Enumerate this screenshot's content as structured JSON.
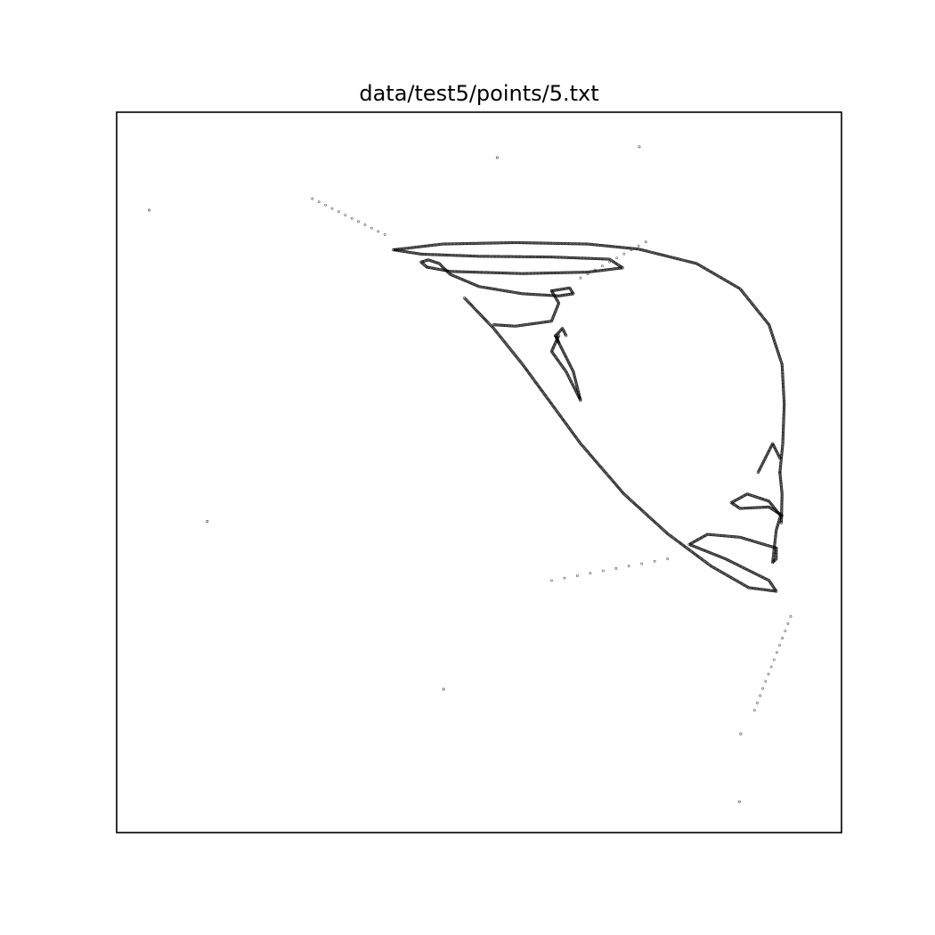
{
  "chart_data": {
    "type": "scatter",
    "title": "data/test5/points/5.txt",
    "xlabel": "",
    "ylabel": "",
    "xlim": [
      0,
      1
    ],
    "ylim": [
      0,
      1
    ],
    "axes_ticks": "none",
    "grid": false,
    "legend": "none",
    "colors": {
      "marker": "#000000",
      "frame": "#000000",
      "background": "#ffffff"
    },
    "isolated_points": [
      {
        "x": 0.045,
        "y": 0.864
      },
      {
        "x": 0.125,
        "y": 0.432
      },
      {
        "x": 0.525,
        "y": 0.937
      },
      {
        "x": 0.721,
        "y": 0.952
      },
      {
        "x": 0.451,
        "y": 0.199
      },
      {
        "x": 0.859,
        "y": 0.043
      },
      {
        "x": 0.861,
        "y": 0.137
      }
    ],
    "dotted_trails": [
      {
        "x0": 0.27,
        "y0": 0.88,
        "x1": 0.37,
        "y1": 0.83,
        "count": 12
      },
      {
        "x0": 0.73,
        "y0": 0.82,
        "x1": 0.64,
        "y1": 0.77,
        "count": 10
      },
      {
        "x0": 0.6,
        "y0": 0.35,
        "x1": 0.76,
        "y1": 0.38,
        "count": 10
      },
      {
        "x0": 0.93,
        "y0": 0.3,
        "x1": 0.88,
        "y1": 0.17,
        "count": 14
      }
    ],
    "curves": [
      {
        "name": "",
        "points": [
          [
            0.382,
            0.809
          ],
          [
            0.45,
            0.817
          ],
          [
            0.55,
            0.819
          ],
          [
            0.65,
            0.817
          ],
          [
            0.72,
            0.81
          ],
          [
            0.8,
            0.79
          ],
          [
            0.86,
            0.755
          ],
          [
            0.9,
            0.705
          ],
          [
            0.918,
            0.65
          ],
          [
            0.921,
            0.595
          ],
          [
            0.919,
            0.54
          ],
          [
            0.915,
            0.5
          ]
        ]
      },
      {
        "name": "",
        "points": [
          [
            0.382,
            0.809
          ],
          [
            0.42,
            0.803
          ],
          [
            0.5,
            0.8
          ],
          [
            0.6,
            0.799
          ],
          [
            0.68,
            0.796
          ],
          [
            0.698,
            0.784
          ],
          [
            0.65,
            0.778
          ],
          [
            0.56,
            0.776
          ],
          [
            0.46,
            0.779
          ],
          [
            0.428,
            0.785
          ]
        ]
      },
      {
        "name": "",
        "points": [
          [
            0.428,
            0.785
          ],
          [
            0.42,
            0.792
          ],
          [
            0.43,
            0.795
          ],
          [
            0.445,
            0.79
          ],
          [
            0.46,
            0.775
          ],
          [
            0.5,
            0.758
          ],
          [
            0.56,
            0.748
          ],
          [
            0.61,
            0.745
          ],
          [
            0.63,
            0.748
          ],
          [
            0.625,
            0.756
          ],
          [
            0.6,
            0.752
          ]
        ]
      },
      {
        "name": "",
        "points": [
          [
            0.6,
            0.752
          ],
          [
            0.61,
            0.735
          ],
          [
            0.6,
            0.71
          ],
          [
            0.55,
            0.703
          ],
          [
            0.52,
            0.705
          ]
        ]
      },
      {
        "name": "",
        "points": [
          [
            0.48,
            0.742
          ],
          [
            0.52,
            0.7
          ],
          [
            0.56,
            0.65
          ],
          [
            0.6,
            0.595
          ],
          [
            0.64,
            0.54
          ],
          [
            0.7,
            0.47
          ],
          [
            0.76,
            0.415
          ],
          [
            0.82,
            0.37
          ],
          [
            0.872,
            0.34
          ],
          [
            0.91,
            0.335
          ],
          [
            0.9,
            0.35
          ],
          [
            0.84,
            0.38
          ],
          [
            0.79,
            0.4
          ],
          [
            0.815,
            0.414
          ],
          [
            0.86,
            0.41
          ],
          [
            0.91,
            0.395
          ]
        ]
      },
      {
        "name": "",
        "points": [
          [
            0.91,
            0.395
          ],
          [
            0.91,
            0.38
          ],
          [
            0.905,
            0.375
          ],
          [
            0.91,
            0.42
          ],
          [
            0.916,
            0.44
          ],
          [
            0.9,
            0.46
          ],
          [
            0.87,
            0.47
          ],
          [
            0.848,
            0.458
          ],
          [
            0.86,
            0.45
          ],
          [
            0.9,
            0.452
          ],
          [
            0.918,
            0.44
          ]
        ]
      },
      {
        "name": "",
        "points": [
          [
            0.915,
            0.5
          ],
          [
            0.918,
            0.47
          ],
          [
            0.917,
            0.43
          ]
        ]
      },
      {
        "name": "",
        "points": [
          [
            0.915,
            0.52
          ],
          [
            0.905,
            0.54
          ],
          [
            0.885,
            0.5
          ]
        ]
      },
      {
        "name": "",
        "points": [
          [
            0.61,
            0.69
          ],
          [
            0.6,
            0.668
          ],
          [
            0.62,
            0.64
          ],
          [
            0.64,
            0.6
          ],
          [
            0.63,
            0.64
          ],
          [
            0.605,
            0.69
          ]
        ]
      },
      {
        "name": "",
        "points": [
          [
            0.62,
            0.69
          ],
          [
            0.615,
            0.7
          ],
          [
            0.606,
            0.69
          ],
          [
            0.61,
            0.68
          ]
        ]
      }
    ]
  }
}
